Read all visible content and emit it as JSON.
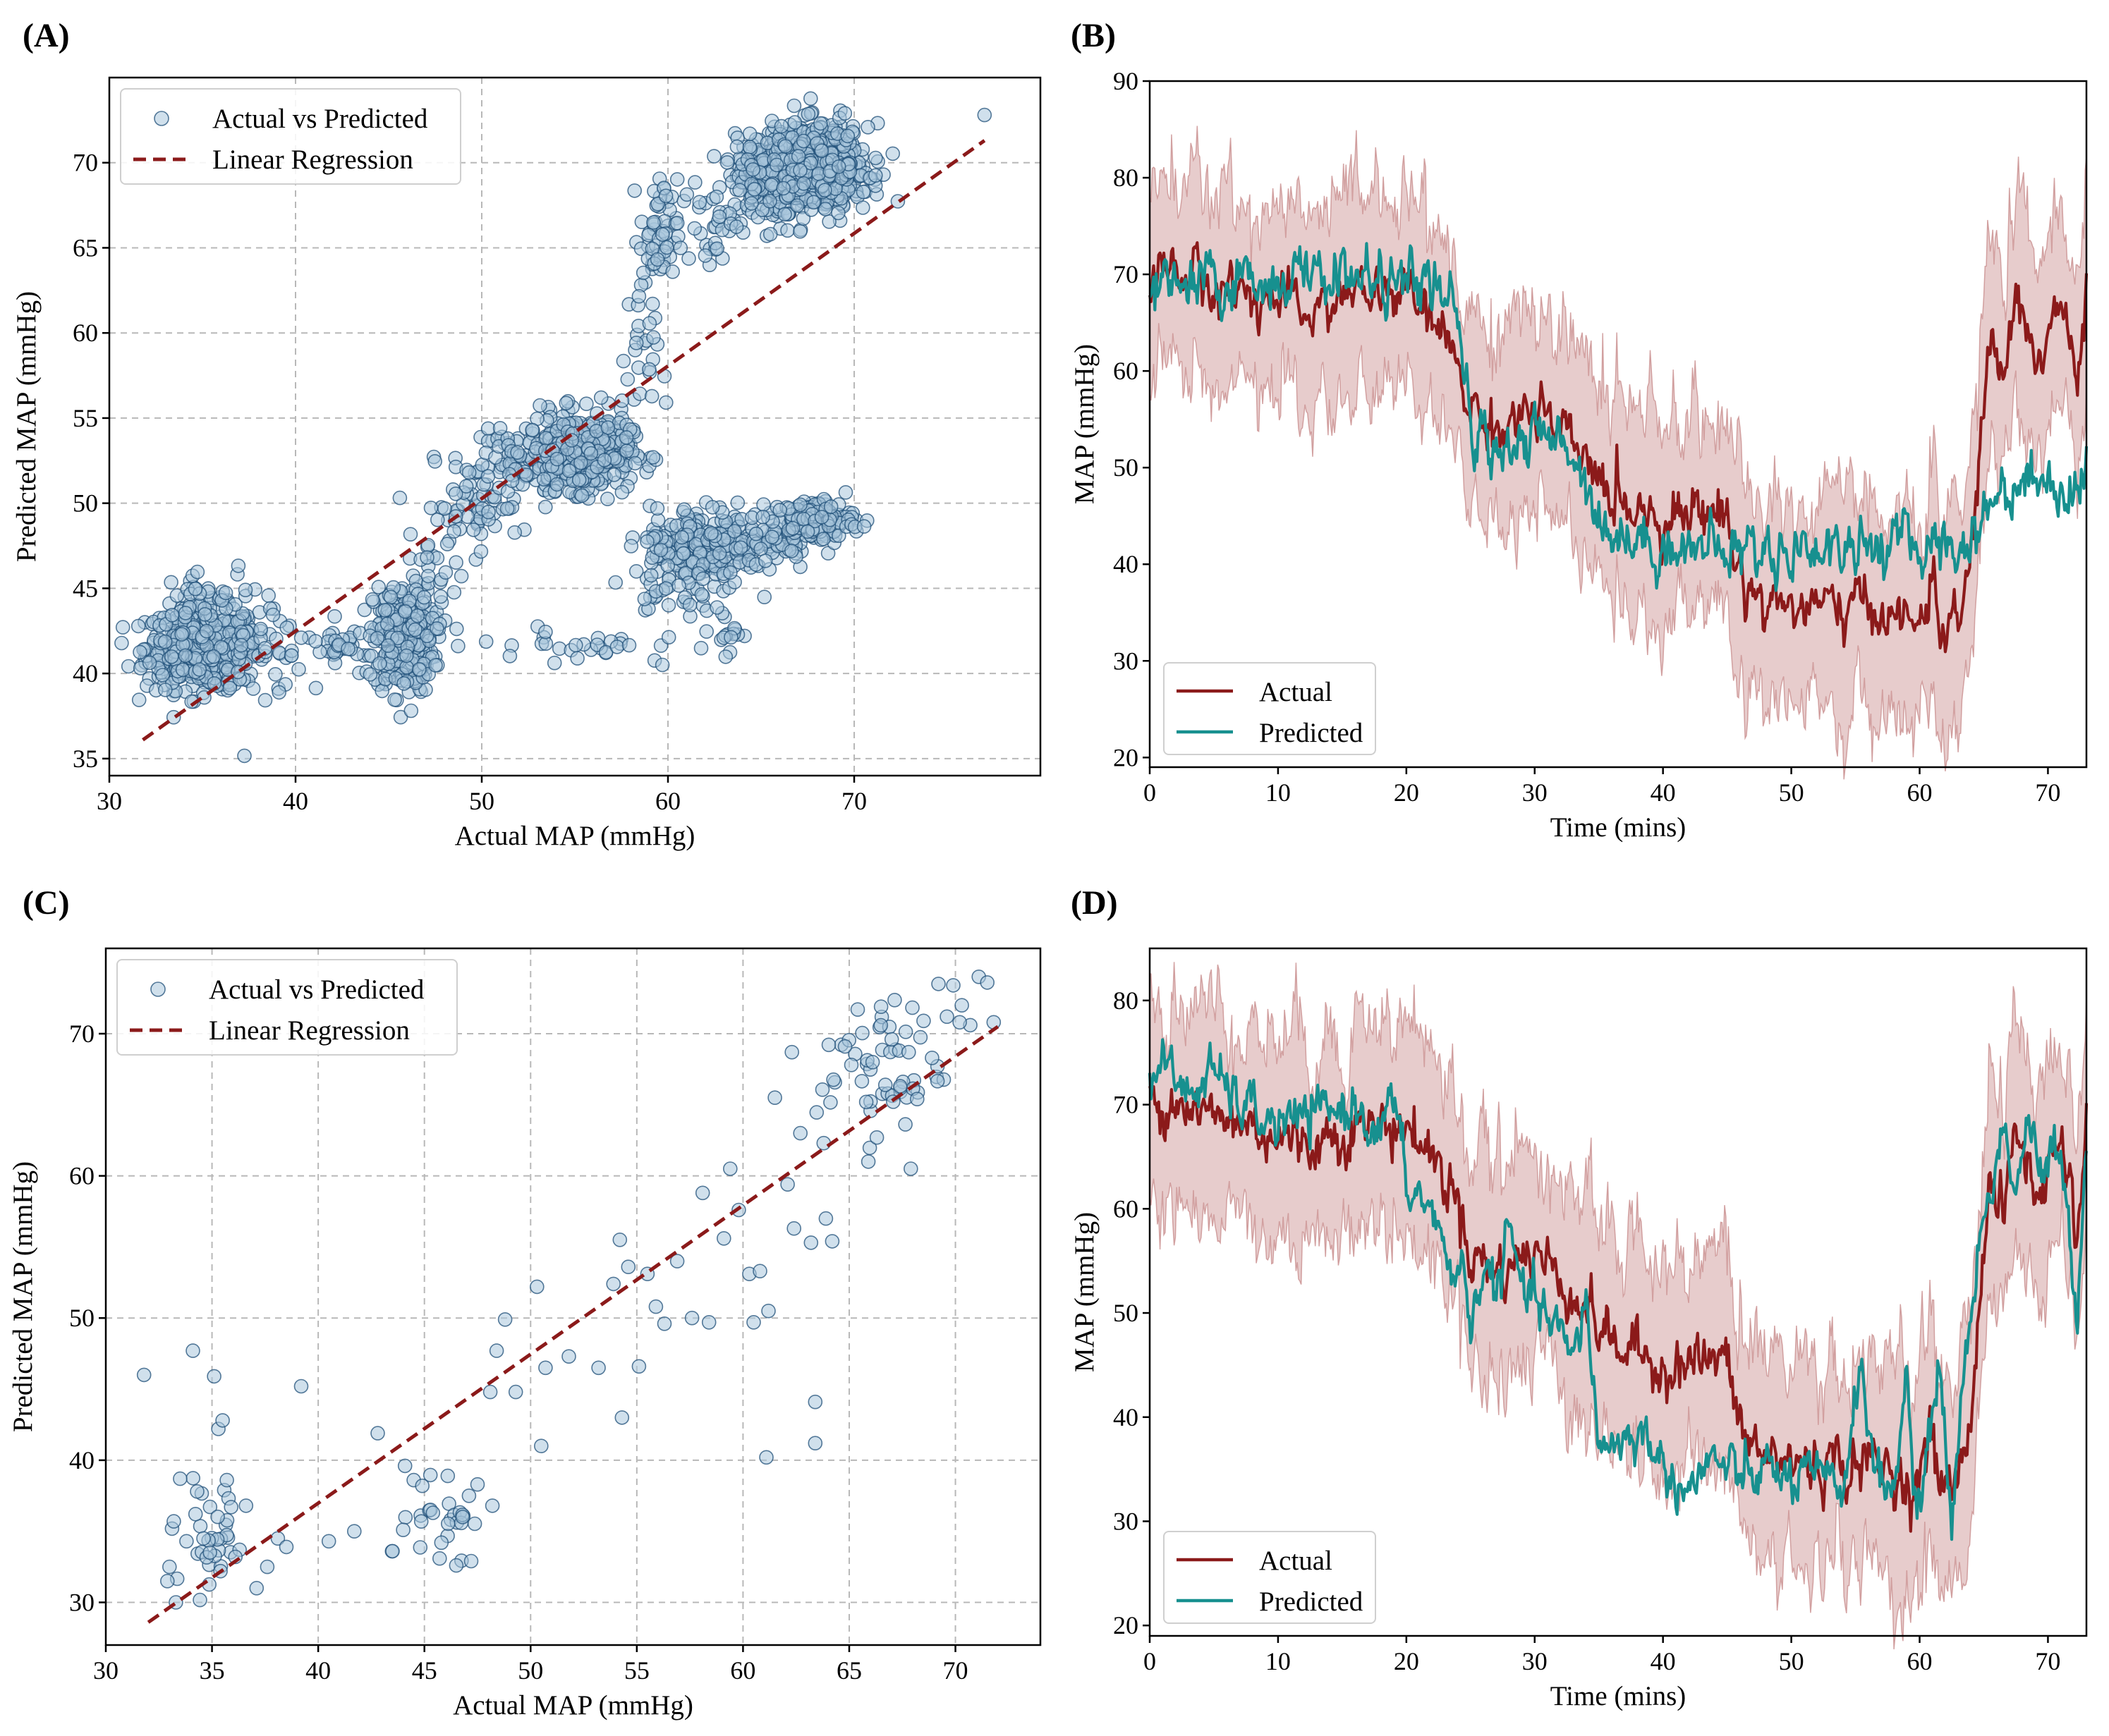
{
  "colors": {
    "scatter_fill": "#a9c6dc",
    "scatter_edge": "#1f4f78",
    "regression": "#8b1a1a",
    "actual": "#8b1a1a",
    "predicted": "#17908f",
    "band": "#c98f8f"
  },
  "panels": {
    "A": {
      "label": "(A)"
    },
    "B": {
      "label": "(B)"
    },
    "C": {
      "label": "(C)"
    },
    "D": {
      "label": "(D)"
    }
  },
  "chart_data": [
    {
      "id": "A",
      "type": "scatter",
      "xlabel": "Actual MAP (mmHg)",
      "ylabel": "Predicted MAP (mmHg)",
      "xlim": [
        30,
        80
      ],
      "ylim": [
        34,
        75
      ],
      "xticks": [
        30,
        40,
        50,
        60,
        70
      ],
      "yticks": [
        35,
        40,
        45,
        50,
        55,
        60,
        65,
        70
      ],
      "grid": true,
      "legend": [
        "Actual vs Predicted",
        "Linear Regression"
      ],
      "legend_position": "top-left",
      "regression": {
        "x": [
          31.8,
          77
        ],
        "y": [
          36.1,
          71.3
        ]
      },
      "clusters": [
        {
          "cx": 35,
          "cy": 41.5,
          "sx": 1.5,
          "sy": 1.2,
          "n": 520
        },
        {
          "cx": 38,
          "cy": 42,
          "sx": 1.3,
          "sy": 1.7,
          "n": 40
        },
        {
          "cx": 34.5,
          "cy": 44.5,
          "sx": 1.2,
          "sy": 0.9,
          "n": 25
        },
        {
          "cx": 42.5,
          "cy": 41.3,
          "sx": 1.3,
          "sy": 0.7,
          "n": 35
        },
        {
          "cx": 45.8,
          "cy": 42,
          "sx": 0.8,
          "sy": 1.6,
          "n": 320
        },
        {
          "cx": 47.5,
          "cy": 46,
          "sx": 0.7,
          "sy": 1.8,
          "n": 30
        },
        {
          "cx": 49.5,
          "cy": 49.8,
          "sx": 1.3,
          "sy": 1.3,
          "n": 55
        },
        {
          "cx": 52,
          "cy": 52.3,
          "sx": 1.2,
          "sy": 1,
          "n": 55
        },
        {
          "cx": 55.2,
          "cy": 53,
          "sx": 1.4,
          "sy": 1.1,
          "n": 440
        },
        {
          "cx": 58.5,
          "cy": 58.5,
          "sx": 0.5,
          "sy": 2.5,
          "n": 30
        },
        {
          "cx": 59.5,
          "cy": 65.8,
          "sx": 0.5,
          "sy": 1.6,
          "n": 50
        },
        {
          "cx": 55.5,
          "cy": 41.7,
          "sx": 2.8,
          "sy": 0.5,
          "n": 30
        },
        {
          "cx": 61.5,
          "cy": 47.3,
          "sx": 1.3,
          "sy": 1.3,
          "n": 170
        },
        {
          "cx": 64.5,
          "cy": 47.8,
          "sx": 1.5,
          "sy": 0.9,
          "n": 120
        },
        {
          "cx": 67.8,
          "cy": 49,
          "sx": 1.1,
          "sy": 0.6,
          "n": 160
        },
        {
          "cx": 59.8,
          "cy": 45.5,
          "sx": 1,
          "sy": 1.5,
          "n": 30
        },
        {
          "cx": 63,
          "cy": 42.5,
          "sx": 0.6,
          "sy": 0.6,
          "n": 18
        },
        {
          "cx": 62.5,
          "cy": 66.3,
          "sx": 1,
          "sy": 1.4,
          "n": 40
        },
        {
          "cx": 66.3,
          "cy": 69.4,
          "sx": 1.3,
          "sy": 1.1,
          "n": 520
        },
        {
          "cx": 68.2,
          "cy": 69.8,
          "sx": 1.3,
          "sy": 1.2,
          "n": 420
        }
      ],
      "extra_points": [
        [
          77,
          72.8
        ],
        [
          69.5,
          72.9
        ],
        [
          65.5,
          65.8
        ],
        [
          59.7,
          40.5
        ]
      ]
    },
    {
      "id": "B",
      "type": "line",
      "xlabel": "Time (mins)",
      "ylabel": "MAP (mmHg)",
      "xlim": [
        0,
        73
      ],
      "ylim": [
        19,
        90
      ],
      "xticks": [
        0,
        10,
        20,
        30,
        40,
        50,
        60,
        70
      ],
      "yticks": [
        20,
        30,
        40,
        50,
        60,
        70,
        80,
        90
      ],
      "grid": false,
      "legend": [
        "Actual",
        "Predicted"
      ],
      "legend_position": "bottom-left",
      "band_halfwidth": 10,
      "actual_knots": [
        [
          0,
          70
        ],
        [
          2,
          71
        ],
        [
          4,
          69
        ],
        [
          8,
          68
        ],
        [
          12,
          66
        ],
        [
          16,
          68
        ],
        [
          20,
          68
        ],
        [
          22,
          65
        ],
        [
          24,
          61
        ],
        [
          25,
          56
        ],
        [
          27,
          54
        ],
        [
          30,
          56
        ],
        [
          33,
          52
        ],
        [
          35,
          49
        ],
        [
          36,
          47
        ],
        [
          38,
          46
        ],
        [
          40,
          45
        ],
        [
          43,
          45.5
        ],
        [
          45,
          45.5
        ],
        [
          45.5,
          41
        ],
        [
          46.5,
          38
        ],
        [
          48,
          36
        ],
        [
          52,
          35.5
        ],
        [
          56,
          35.5
        ],
        [
          58,
          35
        ],
        [
          59.5,
          33
        ],
        [
          61,
          38
        ],
        [
          61.5,
          34
        ],
        [
          63,
          33.5
        ],
        [
          64,
          40
        ],
        [
          64.8,
          54
        ],
        [
          65.5,
          63
        ],
        [
          66.5,
          59
        ],
        [
          67.5,
          68
        ],
        [
          68.5,
          64
        ],
        [
          69.5,
          60
        ],
        [
          70.5,
          67
        ],
        [
          71.5,
          65
        ],
        [
          72.3,
          57
        ],
        [
          73,
          68
        ]
      ],
      "actual_noise": 1.6,
      "predicted_knots": [
        [
          0,
          68
        ],
        [
          5,
          69
        ],
        [
          10,
          69.5
        ],
        [
          15,
          70
        ],
        [
          20,
          69
        ],
        [
          22,
          69
        ],
        [
          23.5,
          67
        ],
        [
          24.5,
          60
        ],
        [
          25.2,
          52.5
        ],
        [
          27,
          52.5
        ],
        [
          31,
          53
        ],
        [
          33,
          52
        ],
        [
          34.5,
          47
        ],
        [
          35.5,
          44
        ],
        [
          37,
          42.5
        ],
        [
          40,
          42
        ],
        [
          44,
          41.5
        ],
        [
          50,
          41.5
        ],
        [
          55,
          42
        ],
        [
          60,
          42
        ],
        [
          63,
          42
        ],
        [
          64,
          42.5
        ],
        [
          65,
          45
        ],
        [
          66,
          47.5
        ],
        [
          68,
          48.5
        ],
        [
          70,
          49
        ],
        [
          72,
          47
        ],
        [
          73,
          50
        ]
      ],
      "predicted_noise": 1.7
    },
    {
      "id": "C",
      "type": "scatter",
      "xlabel": "Actual MAP (mmHg)",
      "ylabel": "Predicted MAP (mmHg)",
      "xlim": [
        30,
        74
      ],
      "ylim": [
        27,
        76
      ],
      "xticks": [
        30,
        35,
        40,
        45,
        50,
        55,
        60,
        65,
        70
      ],
      "yticks": [
        30,
        40,
        50,
        60,
        70
      ],
      "grid": true,
      "legend": [
        "Actual vs Predicted",
        "Linear Regression"
      ],
      "legend_position": "top-left",
      "regression": {
        "x": [
          32,
          72
        ],
        "y": [
          28.6,
          70.5
        ]
      },
      "points": [
        [
          31.8,
          46
        ],
        [
          33,
          32.5
        ],
        [
          33.2,
          35.7
        ],
        [
          33.5,
          38.7
        ],
        [
          33.8,
          34.3
        ],
        [
          34.1,
          47.7
        ],
        [
          34.3,
          37.8
        ],
        [
          34.6,
          34.5
        ],
        [
          35.1,
          45.9
        ],
        [
          35.3,
          42.2
        ],
        [
          35.5,
          42.8
        ],
        [
          35.7,
          38.6
        ],
        [
          35.9,
          36.7
        ],
        [
          36.3,
          33.7
        ],
        [
          36.6,
          36.8
        ],
        [
          32.9,
          31.5
        ],
        [
          33.3,
          30
        ],
        [
          34.9,
          33.5
        ],
        [
          35.4,
          32.2
        ],
        [
          36.1,
          33.2
        ],
        [
          37.1,
          31
        ],
        [
          37.6,
          32.5
        ],
        [
          38.1,
          34.5
        ],
        [
          38.5,
          33.9
        ],
        [
          39.2,
          45.2
        ],
        [
          40.5,
          34.3
        ],
        [
          41.7,
          35
        ],
        [
          42.8,
          41.9
        ],
        [
          43.5,
          33.6
        ],
        [
          44,
          35.1
        ],
        [
          44.5,
          38.6
        ],
        [
          44.9,
          38.2
        ],
        [
          45.4,
          36.3
        ],
        [
          45.8,
          34.2
        ],
        [
          46.1,
          38.9
        ],
        [
          46.5,
          32.6
        ],
        [
          46.8,
          36
        ],
        [
          47.1,
          37.5
        ],
        [
          47.5,
          38.3
        ],
        [
          48.2,
          36.8
        ],
        [
          47.2,
          32.9
        ],
        [
          48.1,
          44.8
        ],
        [
          48.4,
          47.7
        ],
        [
          48.8,
          49.9
        ],
        [
          49.3,
          44.8
        ],
        [
          50.3,
          52.2
        ],
        [
          50.7,
          46.5
        ],
        [
          51.8,
          47.3
        ],
        [
          50.5,
          41
        ],
        [
          53.2,
          46.5
        ],
        [
          53.9,
          52.4
        ],
        [
          54.2,
          55.5
        ],
        [
          54.6,
          53.6
        ],
        [
          54.3,
          43
        ],
        [
          55.1,
          46.6
        ],
        [
          55.5,
          53.1
        ],
        [
          55.9,
          50.8
        ],
        [
          56.3,
          49.6
        ],
        [
          56.9,
          54
        ],
        [
          57.6,
          50
        ],
        [
          58.1,
          58.8
        ],
        [
          58.4,
          49.7
        ],
        [
          59.1,
          55.6
        ],
        [
          59.4,
          60.5
        ],
        [
          59.8,
          57.6
        ],
        [
          60.3,
          53.1
        ],
        [
          60.5,
          49.7
        ],
        [
          60.8,
          53.3
        ],
        [
          61.2,
          50.5
        ],
        [
          61.1,
          40.2
        ],
        [
          61.5,
          65.5
        ],
        [
          62.1,
          59.4
        ],
        [
          62.4,
          56.3
        ],
        [
          62.7,
          63
        ],
        [
          63.2,
          55.3
        ],
        [
          63.4,
          44.1
        ],
        [
          63.4,
          41.2
        ],
        [
          63.8,
          62.3
        ],
        [
          63.9,
          57
        ],
        [
          64.2,
          55.4
        ],
        [
          62.3,
          68.7
        ],
        [
          64.8,
          69.1
        ],
        [
          65.1,
          67.8
        ],
        [
          65.4,
          71.7
        ],
        [
          65.8,
          65.2
        ],
        [
          66.1,
          68
        ],
        [
          66.3,
          62.7
        ],
        [
          66.5,
          71.9
        ],
        [
          66.7,
          66.4
        ],
        [
          67,
          69.6
        ],
        [
          67.4,
          66.3
        ],
        [
          67.8,
          68.7
        ],
        [
          68.2,
          65.4
        ],
        [
          68.5,
          70.9
        ],
        [
          68.9,
          68.3
        ],
        [
          69.2,
          73.5
        ],
        [
          69.6,
          71.2
        ],
        [
          69.9,
          73.4
        ],
        [
          70.3,
          72
        ],
        [
          70.7,
          70.6
        ],
        [
          71.1,
          74
        ],
        [
          71.5,
          73.6
        ],
        [
          71.8,
          70.8
        ],
        [
          67.9,
          60.5
        ],
        [
          65.9,
          61
        ],
        [
          70.2,
          70.8
        ]
      ],
      "clusters": [
        {
          "cx": 35,
          "cy": 34.5,
          "sx": 1,
          "sy": 2,
          "n": 28
        },
        {
          "cx": 45.8,
          "cy": 36.3,
          "sx": 0.7,
          "sy": 1.8,
          "n": 22
        },
        {
          "cx": 66.5,
          "cy": 67.5,
          "sx": 1.5,
          "sy": 2.3,
          "n": 45
        }
      ]
    },
    {
      "id": "D",
      "type": "line",
      "xlabel": "Time (mins)",
      "ylabel": "MAP (mmHg)",
      "xlim": [
        0,
        73
      ],
      "ylim": [
        19,
        85
      ],
      "xticks": [
        0,
        10,
        20,
        30,
        40,
        50,
        60,
        70
      ],
      "yticks": [
        20,
        30,
        40,
        50,
        60,
        70,
        80
      ],
      "grid": false,
      "legend": [
        "Actual",
        "Predicted"
      ],
      "legend_position": "bottom-left",
      "band_halfwidth": 10,
      "actual_knots": [
        [
          0,
          70
        ],
        [
          2,
          71
        ],
        [
          4,
          69
        ],
        [
          8,
          68
        ],
        [
          12,
          66
        ],
        [
          16,
          68
        ],
        [
          20,
          68
        ],
        [
          22,
          65
        ],
        [
          24,
          61
        ],
        [
          25,
          56
        ],
        [
          27,
          54
        ],
        [
          30,
          56
        ],
        [
          33,
          52
        ],
        [
          35,
          49
        ],
        [
          36,
          47
        ],
        [
          38,
          46
        ],
        [
          40,
          45
        ],
        [
          43,
          45.5
        ],
        [
          45,
          45.5
        ],
        [
          45.5,
          41
        ],
        [
          46.5,
          38
        ],
        [
          48,
          36
        ],
        [
          52,
          35.5
        ],
        [
          56,
          35.5
        ],
        [
          58,
          35
        ],
        [
          59.5,
          33
        ],
        [
          61,
          38
        ],
        [
          61.5,
          34
        ],
        [
          63,
          33.5
        ],
        [
          64,
          40
        ],
        [
          64.8,
          54
        ],
        [
          65.5,
          63
        ],
        [
          66.5,
          59
        ],
        [
          67.5,
          68
        ],
        [
          68.5,
          64
        ],
        [
          69.5,
          60
        ],
        [
          70.5,
          67
        ],
        [
          71.5,
          65
        ],
        [
          72.3,
          57
        ],
        [
          73,
          68
        ]
      ],
      "actual_noise": 1.6,
      "predicted_knots": [
        [
          0,
          73
        ],
        [
          1,
          74
        ],
        [
          3,
          71
        ],
        [
          5,
          73
        ],
        [
          7,
          70
        ],
        [
          10,
          68
        ],
        [
          13,
          69
        ],
        [
          16,
          70
        ],
        [
          18,
          67
        ],
        [
          19,
          71
        ],
        [
          20,
          62
        ],
        [
          22,
          60
        ],
        [
          23,
          55
        ],
        [
          24.5,
          54
        ],
        [
          25,
          48
        ],
        [
          26,
          55
        ],
        [
          27,
          52
        ],
        [
          28,
          58
        ],
        [
          29,
          52
        ],
        [
          30,
          51
        ],
        [
          32,
          48
        ],
        [
          33,
          45
        ],
        [
          34,
          52
        ],
        [
          35,
          37
        ],
        [
          37,
          38
        ],
        [
          39,
          38
        ],
        [
          40,
          35
        ],
        [
          42,
          33
        ],
        [
          44,
          36
        ],
        [
          46,
          34
        ],
        [
          48,
          35
        ],
        [
          50,
          34
        ],
        [
          52,
          34
        ],
        [
          54,
          33
        ],
        [
          55.5,
          46
        ],
        [
          56.5,
          34
        ],
        [
          58,
          33
        ],
        [
          59,
          45
        ],
        [
          59.5,
          32
        ],
        [
          60.5,
          34
        ],
        [
          61.5,
          46
        ],
        [
          62.5,
          30
        ],
        [
          63.5,
          45
        ],
        [
          64.5,
          55
        ],
        [
          65.5,
          62
        ],
        [
          66.5,
          68
        ],
        [
          67.5,
          62
        ],
        [
          68.5,
          69
        ],
        [
          69.5,
          62
        ],
        [
          70.5,
          66
        ],
        [
          71.5,
          60
        ],
        [
          72.3,
          50
        ],
        [
          73,
          68
        ]
      ],
      "predicted_noise": 1.4
    }
  ]
}
